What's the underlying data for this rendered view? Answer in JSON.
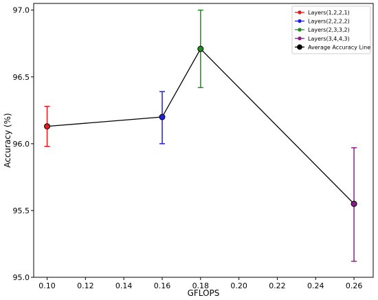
{
  "chart_data": {
    "type": "line",
    "xlabel": "GFLOPS",
    "ylabel": "Accuracy (%)",
    "xlim": [
      0.093,
      0.27
    ],
    "ylim": [
      95.0,
      97.05
    ],
    "xticks": [
      0.1,
      0.12,
      0.14,
      0.16,
      0.18,
      0.2,
      0.22,
      0.24,
      0.26
    ],
    "xtick_labels": [
      "0.10",
      "0.12",
      "0.14",
      "0.16",
      "0.18",
      "0.20",
      "0.22",
      "0.24",
      "0.26"
    ],
    "yticks": [
      95.0,
      95.5,
      96.0,
      96.5,
      97.0
    ],
    "ytick_labels": [
      "95.0",
      "95.5",
      "96.0",
      "96.5",
      "97.0"
    ],
    "grid": false,
    "legend_position": "top-right",
    "series": [
      {
        "name": "Layers(1,2,2,1)",
        "color": "#e31a1c",
        "x": 0.1,
        "y": 96.13,
        "err_low": 95.98,
        "err_high": 96.28
      },
      {
        "name": "Layers(2,2,2,2)",
        "color": "#1f1fe0",
        "x": 0.16,
        "y": 96.2,
        "err_low": 96.0,
        "err_high": 96.39
      },
      {
        "name": "Layers(2,3,3,2)",
        "color": "#228b22",
        "x": 0.18,
        "y": 96.71,
        "err_low": 96.42,
        "err_high": 97.0
      },
      {
        "name": "Layers(3,4,4,3)",
        "color": "#8b1a8b",
        "x": 0.26,
        "y": 95.55,
        "err_low": 95.12,
        "err_high": 95.97
      }
    ],
    "average_line": {
      "name": "Average Accuracy Line",
      "color": "#000000",
      "x": [
        0.1,
        0.16,
        0.18,
        0.26
      ],
      "y": [
        96.13,
        96.2,
        96.71,
        95.55
      ]
    }
  }
}
